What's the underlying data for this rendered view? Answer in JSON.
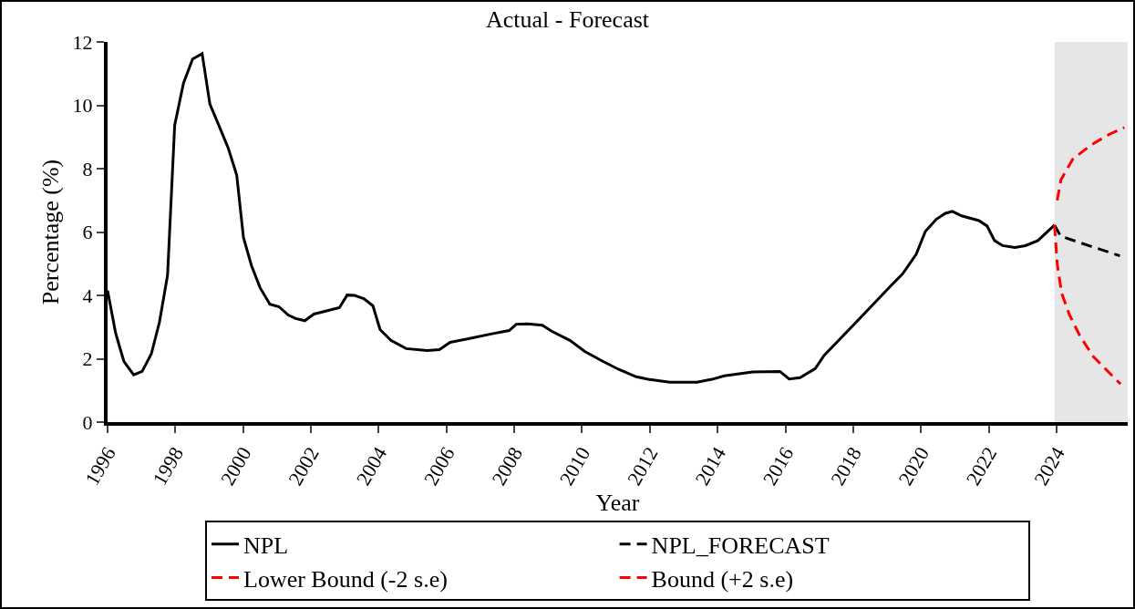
{
  "chart_data": {
    "type": "line",
    "title": "Actual - Forecast",
    "xlabel": "Year",
    "ylabel": "Percentage (%)",
    "xlim": [
      1996,
      2026.1
    ],
    "xticks": [
      1996,
      1998,
      2000,
      2002,
      2004,
      2006,
      2008,
      2010,
      2012,
      2014,
      2016,
      2018,
      2020,
      2022,
      2024
    ],
    "ylim": [
      0,
      12
    ],
    "yticks": [
      0,
      2,
      4,
      6,
      8,
      10,
      12
    ],
    "legend": "bottom",
    "bands": [
      {
        "axis": "x",
        "from": 2023.94,
        "to": 2026.1,
        "color": "#e6e6e6"
      }
    ],
    "series": [
      {
        "name": "NPL",
        "color": "#000000",
        "line_style": "solid",
        "x": [
          1996.0,
          1996.24,
          1996.48,
          1996.77,
          1997.02,
          1997.29,
          1997.53,
          1997.77,
          1997.98,
          1998.24,
          1998.51,
          1998.79,
          1999.02,
          1999.27,
          1999.56,
          1999.81,
          2000.01,
          2000.25,
          2000.5,
          2000.79,
          2001.06,
          2001.33,
          2001.55,
          2001.82,
          2002.09,
          2002.49,
          2002.84,
          2003.07,
          2003.29,
          2003.56,
          2003.83,
          2004.04,
          2004.36,
          2004.81,
          2005.44,
          2005.79,
          2006.11,
          2006.78,
          2007.31,
          2007.85,
          2008.06,
          2008.39,
          2008.83,
          2009.1,
          2009.64,
          2010.08,
          2010.61,
          2011.07,
          2011.6,
          2011.95,
          2012.59,
          2013.39,
          2013.83,
          2014.2,
          2015.03,
          2015.84,
          2016.11,
          2016.43,
          2016.88,
          2017.14,
          2018.04,
          2019.11,
          2019.46,
          2019.86,
          2020.13,
          2020.45,
          2020.72,
          2020.93,
          2021.2,
          2021.71,
          2021.95,
          2022.17,
          2022.41,
          2022.77,
          2023.08,
          2023.45,
          2023.94
        ],
        "values": [
          4.15,
          2.8,
          1.92,
          1.49,
          1.6,
          2.15,
          3.15,
          4.64,
          9.37,
          10.7,
          11.46,
          11.63,
          10.03,
          9.4,
          8.65,
          7.8,
          5.82,
          4.93,
          4.24,
          3.72,
          3.64,
          3.38,
          3.27,
          3.2,
          3.41,
          3.52,
          3.61,
          4.01,
          4.0,
          3.9,
          3.67,
          2.92,
          2.58,
          2.32,
          2.26,
          2.29,
          2.52,
          2.66,
          2.78,
          2.89,
          3.09,
          3.1,
          3.06,
          2.87,
          2.58,
          2.23,
          1.92,
          1.67,
          1.43,
          1.35,
          1.26,
          1.26,
          1.35,
          1.46,
          1.58,
          1.6,
          1.36,
          1.4,
          1.69,
          2.1,
          3.1,
          4.3,
          4.68,
          5.3,
          6.02,
          6.4,
          6.59,
          6.65,
          6.51,
          6.36,
          6.19,
          5.73,
          5.57,
          5.51,
          5.57,
          5.73,
          6.22
        ]
      },
      {
        "name": "NPL_FORECAST",
        "color": "#000000",
        "line_style": "dashed",
        "x": [
          2023.94,
          2024.12,
          2025.01,
          2025.87
        ],
        "values": [
          6.22,
          5.87,
          5.55,
          5.25
        ]
      },
      {
        "name": "Lower Bound (-2 s.e)",
        "color": "#ff0000",
        "line_style": "dashed",
        "x": [
          2023.94,
          2024.02,
          2024.15,
          2024.38,
          2024.69,
          2025.09,
          2025.89
        ],
        "values": [
          6.22,
          5.0,
          4.07,
          3.39,
          2.72,
          2.06,
          1.2
        ]
      },
      {
        "name": "Bound (+2 s.e)",
        "color": "#ff0000",
        "line_style": "dashed",
        "x": [
          2024.02,
          2024.13,
          2024.48,
          2025.01,
          2025.55,
          2026.0
        ],
        "values": [
          7.0,
          7.65,
          8.3,
          8.74,
          9.08,
          9.3
        ]
      }
    ]
  }
}
